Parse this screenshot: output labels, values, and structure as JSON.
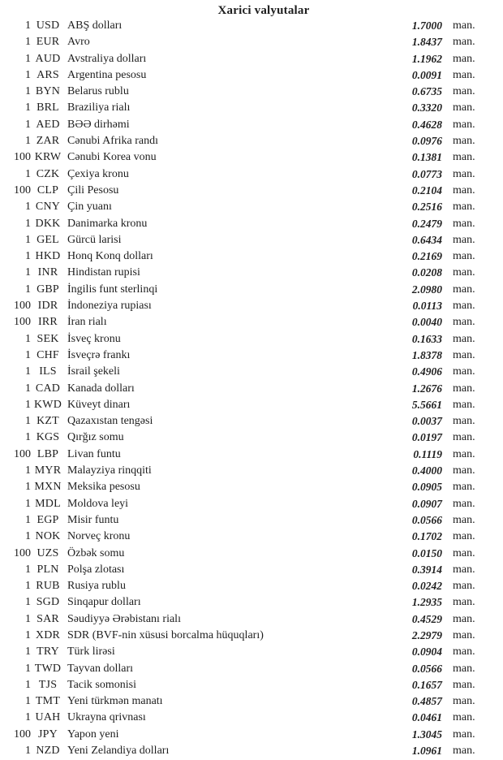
{
  "page": {
    "title": "Xarici valyutalar",
    "unit_label": "man."
  },
  "rows": [
    {
      "qty": "1",
      "code": "USD",
      "name": "ABŞ dolları",
      "rate": "1.7000"
    },
    {
      "qty": "1",
      "code": "EUR",
      "name": "Avro",
      "rate": "1.8437"
    },
    {
      "qty": "1",
      "code": "AUD",
      "name": "Avstraliya dolları",
      "rate": "1.1962"
    },
    {
      "qty": "1",
      "code": "ARS",
      "name": "Argentina pesosu",
      "rate": "0.0091"
    },
    {
      "qty": "1",
      "code": "BYN",
      "name": "Belarus rublu",
      "rate": "0.6735"
    },
    {
      "qty": "1",
      "code": "BRL",
      "name": "Braziliya rialı",
      "rate": "0.3320"
    },
    {
      "qty": "1",
      "code": "AED",
      "name": "BƏƏ dirhəmi",
      "rate": "0.4628"
    },
    {
      "qty": "1",
      "code": "ZAR",
      "name": "Cənubi Afrika randı",
      "rate": "0.0976"
    },
    {
      "qty": "100",
      "code": "KRW",
      "name": "Cənubi Korea vonu",
      "rate": "0.1381"
    },
    {
      "qty": "1",
      "code": "CZK",
      "name": "Çexiya kronu",
      "rate": "0.0773"
    },
    {
      "qty": "100",
      "code": "CLP",
      "name": "Çili Pesosu",
      "rate": "0.2104"
    },
    {
      "qty": "1",
      "code": "CNY",
      "name": "Çin yuanı",
      "rate": "0.2516"
    },
    {
      "qty": "1",
      "code": "DKK",
      "name": "Danimarka kronu",
      "rate": "0.2479"
    },
    {
      "qty": "1",
      "code": "GEL",
      "name": "Gürcü larisi",
      "rate": "0.6434"
    },
    {
      "qty": "1",
      "code": "HKD",
      "name": "Honq Konq dolları",
      "rate": "0.2169"
    },
    {
      "qty": "1",
      "code": "INR",
      "name": "Hindistan rupisi",
      "rate": "0.0208"
    },
    {
      "qty": "1",
      "code": "GBP",
      "name": "İngilis funt sterlinqi",
      "rate": "2.0980"
    },
    {
      "qty": "100",
      "code": "IDR",
      "name": "İndoneziya rupiası",
      "rate": "0.0113"
    },
    {
      "qty": "100",
      "code": "IRR",
      "name": "İran rialı",
      "rate": "0.0040"
    },
    {
      "qty": "1",
      "code": "SEK",
      "name": "İsveç kronu",
      "rate": "0.1633"
    },
    {
      "qty": "1",
      "code": "CHF",
      "name": "İsveçrə frankı",
      "rate": "1.8378"
    },
    {
      "qty": "1",
      "code": "ILS",
      "name": "İsrail şekeli",
      "rate": "0.4906"
    },
    {
      "qty": "1",
      "code": "CAD",
      "name": "Kanada dolları",
      "rate": "1.2676"
    },
    {
      "qty": "1",
      "code": "KWD",
      "name": "Küveyt dinarı",
      "rate": "5.5661"
    },
    {
      "qty": "1",
      "code": "KZT",
      "name": "Qazaxıstan tengəsi",
      "rate": "0.0037"
    },
    {
      "qty": "1",
      "code": "KGS",
      "name": "Qırğız somu",
      "rate": "0.0197"
    },
    {
      "qty": "100",
      "code": "LBP",
      "name": "Livan funtu",
      "rate": "0.1119"
    },
    {
      "qty": "1",
      "code": "MYR",
      "name": "Malayziya rinqqiti",
      "rate": "0.4000"
    },
    {
      "qty": "1",
      "code": "MXN",
      "name": "Meksika pesosu",
      "rate": "0.0905"
    },
    {
      "qty": "1",
      "code": "MDL",
      "name": "Moldova leyi",
      "rate": "0.0907"
    },
    {
      "qty": "1",
      "code": "EGP",
      "name": "Misir funtu",
      "rate": "0.0566"
    },
    {
      "qty": "1",
      "code": "NOK",
      "name": "Norveç kronu",
      "rate": "0.1702"
    },
    {
      "qty": "100",
      "code": "UZS",
      "name": "Özbək somu",
      "rate": "0.0150"
    },
    {
      "qty": "1",
      "code": "PLN",
      "name": "Polşa zlotası",
      "rate": "0.3914"
    },
    {
      "qty": "1",
      "code": "RUB",
      "name": "Rusiya rublu",
      "rate": "0.0242"
    },
    {
      "qty": "1",
      "code": "SGD",
      "name": "Sinqapur dolları",
      "rate": "1.2935"
    },
    {
      "qty": "1",
      "code": "SAR",
      "name": "Səudiyyə Ərəbistanı rialı",
      "rate": "0.4529"
    },
    {
      "qty": "1",
      "code": "XDR",
      "name": "SDR (BVF-nin xüsusi borcalma hüquqları)",
      "rate": "2.2979"
    },
    {
      "qty": "1",
      "code": "TRY",
      "name": "Türk lirəsi",
      "rate": "0.0904"
    },
    {
      "qty": "1",
      "code": "TWD",
      "name": "Tayvan dolları",
      "rate": "0.0566"
    },
    {
      "qty": "1",
      "code": "TJS",
      "name": "Tacik somonisi",
      "rate": "0.1657"
    },
    {
      "qty": "1",
      "code": "TMT",
      "name": "Yeni türkmən manatı",
      "rate": "0.4857"
    },
    {
      "qty": "1",
      "code": "UAH",
      "name": "Ukrayna qrivnası",
      "rate": "0.0461"
    },
    {
      "qty": "100",
      "code": "JPY",
      "name": "Yapon yeni",
      "rate": "1.3045"
    },
    {
      "qty": "1",
      "code": "NZD",
      "name": "Yeni Zelandiya dolları",
      "rate": "1.0961"
    }
  ]
}
